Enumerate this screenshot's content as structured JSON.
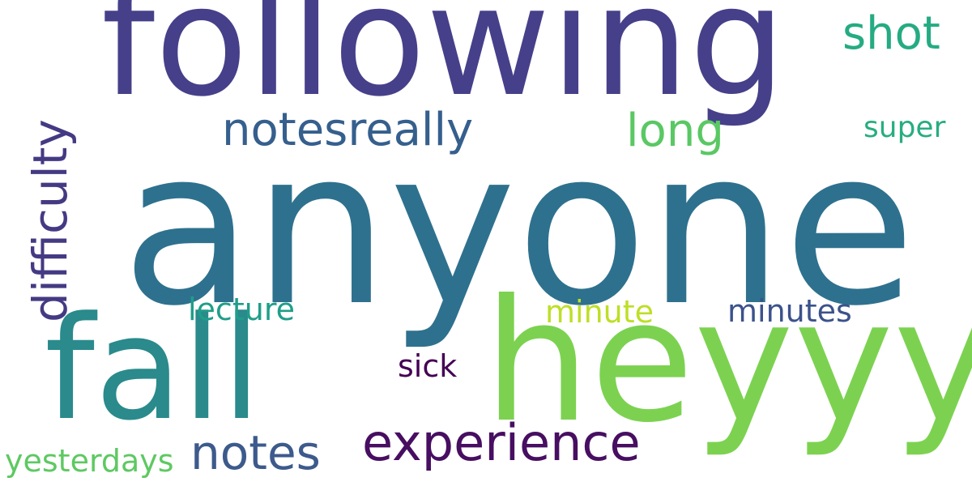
{
  "words": {
    "anyone": {
      "text": "anyone",
      "color": "#2e718e"
    },
    "following": {
      "text": "following",
      "color": "#46408a"
    },
    "heyyy": {
      "text": "heyyy",
      "color": "#7cd250"
    },
    "fall": {
      "text": "fall",
      "color": "#2a8a8c"
    },
    "notesreally": {
      "text": "notesreally",
      "color": "#355f8d"
    },
    "experience": {
      "text": "experience",
      "color": "#470e61"
    },
    "notes": {
      "text": "notes",
      "color": "#3d5a8c"
    },
    "long": {
      "text": "long",
      "color": "#5ac864"
    },
    "shot": {
      "text": "shot",
      "color": "#25ab82"
    },
    "super": {
      "text": "super",
      "color": "#27ad81"
    },
    "lecture": {
      "text": "lecture",
      "color": "#1f9e89"
    },
    "minute": {
      "text": "minute",
      "color": "#bddf26"
    },
    "minutes": {
      "text": "minutes",
      "color": "#3b528b"
    },
    "sick": {
      "text": "sick",
      "color": "#440154"
    },
    "yesterdays": {
      "text": "yesterdays",
      "color": "#5ec962"
    },
    "difficulty": {
      "text": "difficulty",
      "color": "#443a83"
    }
  },
  "background_color": "#ffffff"
}
